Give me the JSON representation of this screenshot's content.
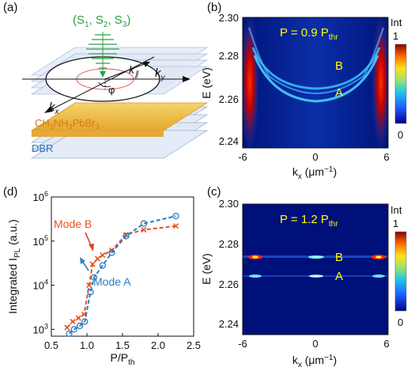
{
  "panel_labels": {
    "a": "(a)",
    "b": "(b)",
    "c": "(c)",
    "d": "(d)"
  },
  "schematic": {
    "stokes": "(S",
    "stokes_sub1": "1",
    "stokes_mid1": ", S",
    "stokes_sub2": "2",
    "stokes_mid2": ", S",
    "stokes_sub3": "3",
    "stokes_end": ")",
    "k_parallel": "k",
    "k_parallel_sub": "∥",
    "ky": "k",
    "ky_sub": "y",
    "kx": "k",
    "kx_sub": "x",
    "phi": "φ",
    "perovskite_a": "CH",
    "perovskite_s1": "3",
    "perovskite_b": "NH",
    "perovskite_s2": "3",
    "perovskite_c": "PbBr",
    "perovskite_s3": "3",
    "dbr": "DBR",
    "colors": {
      "stokes": "#2aa043",
      "perovskite": "#e08a1e",
      "dbr": "#2f6fb5",
      "layer": "#f3c94a"
    }
  },
  "maps": {
    "b": {
      "power": "P = 0.9 P",
      "power_sub": "thr"
    },
    "c": {
      "power": "P = 1.2 P",
      "power_sub": "thr"
    },
    "ylabel": "E (eV)",
    "xlabel": "k",
    "xlabel_sub": "x",
    "xlabel_unit": " (μm",
    "xlabel_exp": "−1",
    "xlabel_close": ")",
    "yticks": [
      "2.30",
      "2.28",
      "2.26",
      "2.24"
    ],
    "xticks": [
      "-6",
      "0",
      "6"
    ],
    "mode_b": "B",
    "mode_a": "A",
    "colorbar_title": "Int",
    "colorbar_max": "1",
    "colorbar_min": "0"
  },
  "chart_data": {
    "type": "scatter",
    "title": "",
    "xlabel": "P/P",
    "xlabel_sub": "th",
    "ylabel": "Integrated I",
    "ylabel_sub": "PL",
    "ylabel_unit": " (a.u.)",
    "xlim": [
      0.5,
      2.5
    ],
    "ylim": [
      700,
      1000000
    ],
    "yscale": "log",
    "xticks": [
      "0.5",
      "1.0",
      "1.5",
      "2.0",
      "2.5"
    ],
    "yticks": [
      {
        "base": "10",
        "exp": "3",
        "value": 1000
      },
      {
        "base": "10",
        "exp": "4",
        "value": 10000
      },
      {
        "base": "10",
        "exp": "5",
        "value": 100000
      },
      {
        "base": "10",
        "exp": "6",
        "value": 1000000
      }
    ],
    "series": [
      {
        "name": "Mode B",
        "color": "#e8541c",
        "marker": "x",
        "x": [
          0.72,
          0.8,
          0.88,
          0.96,
          1.03,
          1.08,
          1.15,
          1.22,
          1.35,
          1.55,
          1.8,
          2.25
        ],
        "y": [
          1100,
          1500,
          1800,
          2200,
          10000,
          30000,
          40000,
          48000,
          62000,
          140000,
          180000,
          220000
        ]
      },
      {
        "name": "Mode A",
        "color": "#2b7cc0",
        "marker": "o",
        "x": [
          0.75,
          0.82,
          0.9,
          0.97,
          1.05,
          1.1,
          1.22,
          1.35,
          1.55,
          1.8,
          2.25
        ],
        "y": [
          800,
          1000,
          1200,
          1500,
          7000,
          15000,
          28000,
          55000,
          130000,
          250000,
          370000
        ]
      }
    ],
    "annotations": [
      {
        "text": "Mode B",
        "color": "#e8541c"
      },
      {
        "text": "Mode A",
        "color": "#2b7cc0"
      }
    ]
  }
}
